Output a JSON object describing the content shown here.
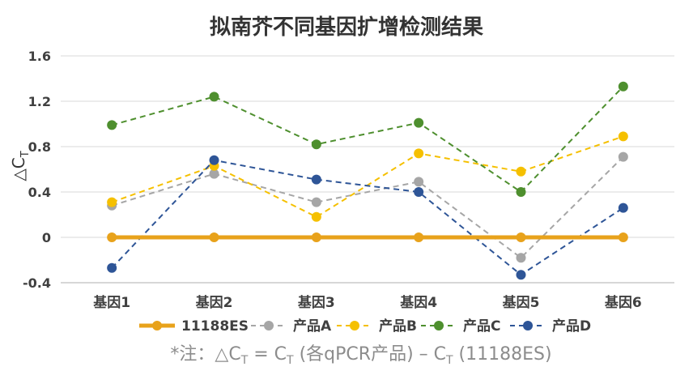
{
  "chart_data": {
    "type": "line",
    "title": "拟南芥不同基因扩增检测结果",
    "ylabel_main": "△C",
    "ylabel_sub": "T",
    "xlabel": "",
    "categories": [
      "基因1",
      "基因2",
      "基因3",
      "基因4",
      "基因5",
      "基因6"
    ],
    "ylim": [
      -0.4,
      1.6
    ],
    "yticks": [
      -0.4,
      0,
      0.4,
      0.8,
      1.2,
      1.6
    ],
    "ytick_labels": [
      "-0.4",
      "0",
      "0.4",
      "0.8",
      "1.2",
      "1.6"
    ],
    "grid": true,
    "legend_position": "bottom",
    "series": [
      {
        "name": "11188ES",
        "values": [
          0,
          0,
          0,
          0,
          0,
          0
        ],
        "color": "#E8A21B",
        "dashed": false
      },
      {
        "name": "产品A",
        "values": [
          0.28,
          0.56,
          0.31,
          0.49,
          -0.18,
          0.71
        ],
        "color": "#A6A6A6",
        "dashed": true
      },
      {
        "name": "产品B",
        "values": [
          0.31,
          0.63,
          0.18,
          0.74,
          0.58,
          0.89
        ],
        "color": "#F5C000",
        "dashed": true
      },
      {
        "name": "产品C",
        "values": [
          0.99,
          1.24,
          0.82,
          1.01,
          0.4,
          1.33
        ],
        "color": "#4E8F2E",
        "dashed": true
      },
      {
        "name": "产品D",
        "values": [
          -0.27,
          0.68,
          0.51,
          0.4,
          -0.33,
          0.26
        ],
        "color": "#2E5597",
        "dashed": true
      }
    ],
    "footnote": {
      "prefix": "*注：△C",
      "sub1": "T",
      "mid": " = C",
      "sub2": "T",
      "suffix": " (各qPCR产品) – C",
      "sub3": "T",
      "end": " (11188ES)"
    }
  }
}
